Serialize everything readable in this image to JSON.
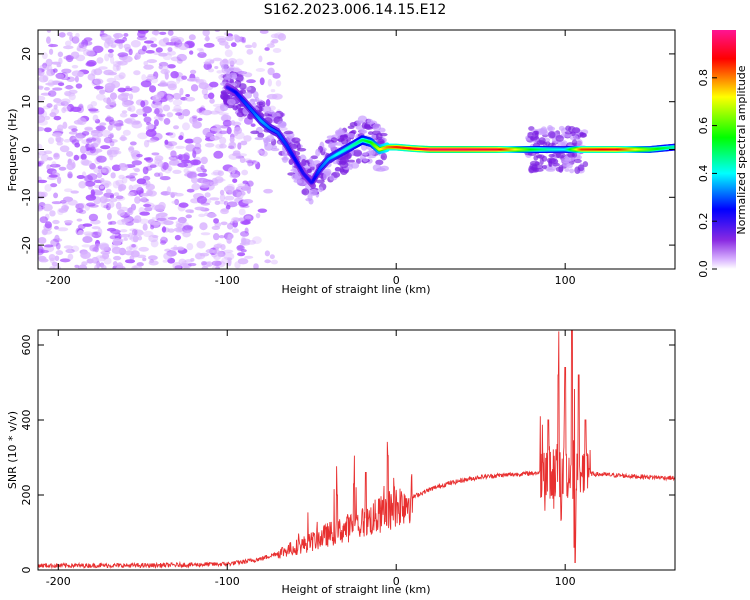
{
  "title": "S162.2023.006.14.15.E12",
  "colorbar": {
    "label": "Normalized spectral amplitude",
    "ticks": [
      0.0,
      0.2,
      0.4,
      0.6,
      0.8
    ],
    "tick_labels": [
      "0.0",
      "0.2",
      "0.4",
      "0.6",
      "0.8"
    ],
    "range": [
      0,
      1
    ],
    "colormap": [
      "#ffffff",
      "#8a2be2",
      "#0000ff",
      "#00ffff",
      "#00ff00",
      "#ffff00",
      "#ff0000",
      "#ff1493"
    ]
  },
  "chart_data": [
    {
      "type": "heatmap",
      "xlabel": "Height of straight line (km)",
      "ylabel": "Frequency (Hz)",
      "xlim": [
        -212,
        165
      ],
      "ylim": [
        -25,
        25
      ],
      "xticks": [
        -200,
        -100,
        0,
        100
      ],
      "xtick_labels": [
        "-200",
        "-100",
        "0",
        "100"
      ],
      "yticks": [
        -20,
        -10,
        0,
        10,
        20
      ],
      "ytick_labels": [
        "-20",
        "-10",
        "0",
        "10",
        "20"
      ],
      "colors": {
        "noise": "#a64dff",
        "noise_light": "#d9b3ff"
      },
      "noise_region_x": [
        -212,
        -87
      ],
      "ridge": {
        "x": [
          -100,
          -95,
          -90,
          -85,
          -80,
          -75,
          -70,
          -65,
          -60,
          -55,
          -50,
          -45,
          -40,
          -35,
          -30,
          -25,
          -20,
          -15,
          -10,
          -5,
          0,
          10,
          20,
          40,
          60,
          80,
          90,
          100,
          110,
          130,
          150,
          165
        ],
        "y": [
          13,
          12,
          10,
          8,
          6,
          4.5,
          3.5,
          1,
          -2,
          -5,
          -7,
          -4,
          -2,
          -1,
          0,
          1,
          2,
          1.5,
          0,
          0.5,
          0.5,
          0.2,
          0,
          0,
          0,
          0,
          0,
          0,
          0,
          0,
          0,
          0.5
        ],
        "amplitude": [
          0.2,
          0.25,
          0.28,
          0.3,
          0.35,
          0.32,
          0.3,
          0.28,
          0.25,
          0.22,
          0.22,
          0.3,
          0.35,
          0.4,
          0.42,
          0.45,
          0.5,
          0.55,
          0.7,
          0.8,
          0.85,
          0.88,
          0.95,
          0.95,
          0.92,
          0.55,
          0.45,
          0.4,
          0.85,
          0.9,
          0.6,
          0.45
        ]
      }
    },
    {
      "type": "line",
      "xlabel": "Height of straight line (km)",
      "ylabel": "SNR (10 * v/v)",
      "xlim": [
        -212,
        165
      ],
      "ylim": [
        0,
        640
      ],
      "xticks": [
        -200,
        -100,
        0,
        100
      ],
      "xtick_labels": [
        "-200",
        "-100",
        "0",
        "100"
      ],
      "yticks": [
        0,
        200,
        400,
        600
      ],
      "ytick_labels": [
        "0",
        "200",
        "400",
        "600"
      ],
      "color": "#e83030",
      "trend": {
        "x": [
          -212,
          -150,
          -120,
          -100,
          -90,
          -80,
          -70,
          -60,
          -50,
          -40,
          -30,
          -20,
          -10,
          0,
          10,
          20,
          30,
          40,
          50,
          60,
          70,
          80,
          90,
          100,
          110,
          120,
          140,
          165
        ],
        "y": [
          12,
          12,
          14,
          16,
          22,
          30,
          45,
          60,
          75,
          95,
          110,
          125,
          145,
          170,
          195,
          215,
          230,
          240,
          248,
          252,
          255,
          258,
          262,
          262,
          258,
          255,
          250,
          245
        ]
      },
      "spikes": [
        {
          "x": -35,
          "y": 200
        },
        {
          "x": -25,
          "y": 230
        },
        {
          "x": -18,
          "y": 260
        },
        {
          "x": -5,
          "y": 305
        },
        {
          "x": 90,
          "y": 400
        },
        {
          "x": 96,
          "y": 520
        },
        {
          "x": 100,
          "y": 540
        },
        {
          "x": 104,
          "y": 640
        },
        {
          "x": 106,
          "y": 20
        },
        {
          "x": 108,
          "y": 520
        },
        {
          "x": 112,
          "y": 400
        }
      ]
    }
  ]
}
